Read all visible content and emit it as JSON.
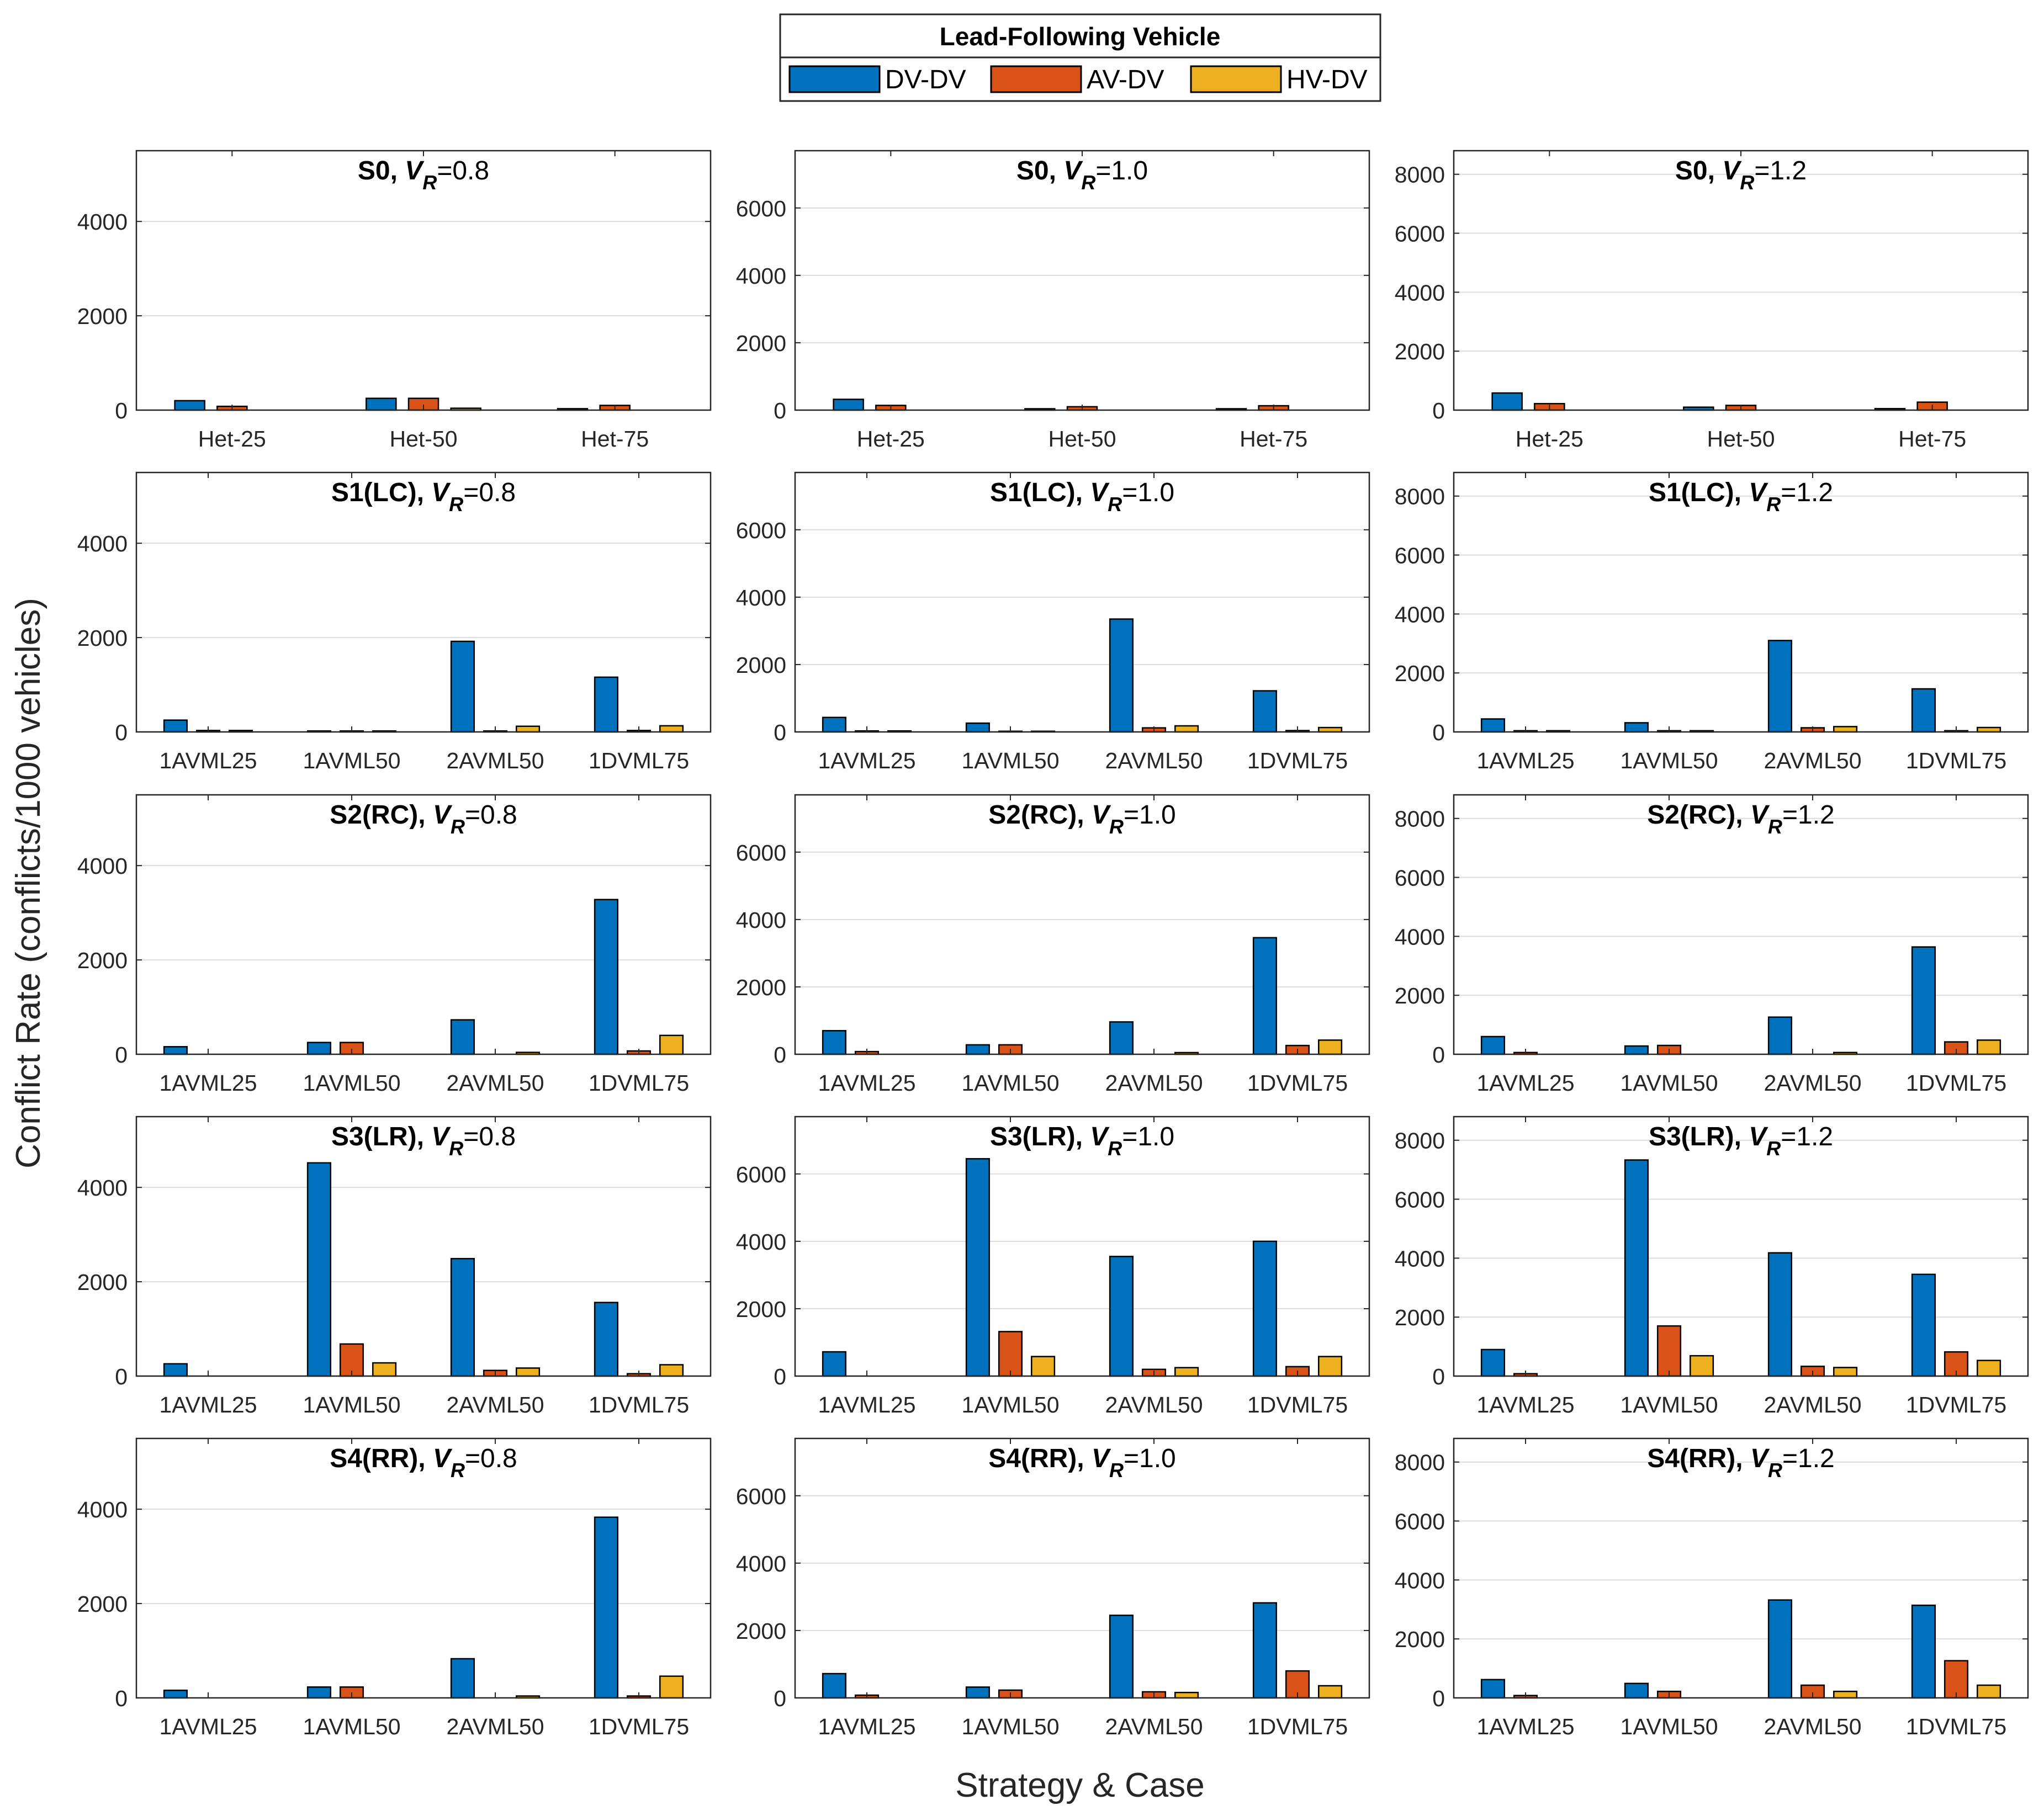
{
  "chart_data": {
    "type": "bar",
    "legend": {
      "title": "Lead-Following Vehicle",
      "placement": "top-center",
      "entries": [
        {
          "name": "DV-DV",
          "color": "#0072BD"
        },
        {
          "name": "AV-DV",
          "color": "#D95319"
        },
        {
          "name": "HV-DV",
          "color": "#EDB120"
        }
      ]
    },
    "xlabel": "Strategy & Case",
    "ylabel": "Conflict Rate (conflicts/1000 vehicles)",
    "columns": [
      {
        "vr": "0.8",
        "ylim": [
          0,
          5500
        ],
        "yticks": [
          0,
          2000,
          4000
        ]
      },
      {
        "vr": "1.0",
        "ylim": [
          0,
          7700
        ],
        "yticks": [
          0,
          2000,
          4000,
          6000
        ]
      },
      {
        "vr": "1.2",
        "ylim": [
          0,
          8800
        ],
        "yticks": [
          0,
          2000,
          4000,
          6000,
          8000
        ]
      }
    ],
    "rows": [
      {
        "strategy": "S0",
        "categories": [
          "Het-25",
          "Het-50",
          "Het-75"
        ],
        "panels": [
          {
            "series": [
              [
                200,
                250,
                30
              ],
              [
                80,
                250,
                100
              ],
              [
                0,
                40,
                0
              ]
            ]
          },
          {
            "series": [
              [
                320,
                40,
                40
              ],
              [
                140,
                100,
                130
              ],
              [
                0,
                0,
                0
              ]
            ]
          },
          {
            "series": [
              [
                580,
                100,
                50
              ],
              [
                220,
                160,
                270
              ],
              [
                0,
                0,
                0
              ]
            ]
          }
        ]
      },
      {
        "strategy": "S1(LC)",
        "categories": [
          "1AVML25",
          "1AVML50",
          "2AVML50",
          "1DVML75"
        ],
        "panels": [
          {
            "series": [
              [
                250,
                20,
                1920,
                1160
              ],
              [
                30,
                20,
                20,
                30
              ],
              [
                30,
                20,
                120,
                130
              ]
            ]
          },
          {
            "series": [
              [
                430,
                260,
                3350,
                1220
              ],
              [
                30,
                20,
                120,
                40
              ],
              [
                30,
                20,
                180,
                130
              ]
            ]
          },
          {
            "series": [
              [
                440,
                310,
                3100,
                1460
              ],
              [
                40,
                40,
                140,
                40
              ],
              [
                40,
                40,
                180,
                150
              ]
            ]
          }
        ]
      },
      {
        "strategy": "S2(RC)",
        "categories": [
          "1AVML25",
          "1AVML50",
          "2AVML50",
          "1DVML75"
        ],
        "panels": [
          {
            "series": [
              [
                160,
                250,
                730,
                3280
              ],
              [
                0,
                250,
                0,
                70
              ],
              [
                0,
                0,
                40,
                400
              ]
            ]
          },
          {
            "series": [
              [
                700,
                280,
                960,
                3460
              ],
              [
                80,
                280,
                0,
                260
              ],
              [
                0,
                0,
                50,
                420
              ]
            ]
          },
          {
            "series": [
              [
                600,
                280,
                1260,
                3640
              ],
              [
                60,
                300,
                0,
                420
              ],
              [
                0,
                0,
                60,
                480
              ]
            ]
          }
        ]
      },
      {
        "strategy": "S3(LR)",
        "categories": [
          "1AVML25",
          "1AVML50",
          "2AVML50",
          "1DVML75"
        ],
        "panels": [
          {
            "series": [
              [
                260,
                4520,
                2490,
                1560
              ],
              [
                0,
                680,
                120,
                50
              ],
              [
                0,
                280,
                170,
                240
              ]
            ]
          },
          {
            "series": [
              [
                720,
                6450,
                3550,
                4000
              ],
              [
                0,
                1320,
                200,
                280
              ],
              [
                0,
                580,
                250,
                580
              ]
            ]
          },
          {
            "series": [
              [
                900,
                7330,
                4180,
                3450
              ],
              [
                80,
                1700,
                330,
                820
              ],
              [
                0,
                690,
                290,
                530
              ]
            ]
          }
        ]
      },
      {
        "strategy": "S4(RR)",
        "categories": [
          "1AVML25",
          "1AVML50",
          "2AVML50",
          "1DVML75"
        ],
        "panels": [
          {
            "series": [
              [
                160,
                230,
                830,
                3830
              ],
              [
                0,
                230,
                0,
                40
              ],
              [
                0,
                0,
                40,
                460
              ]
            ]
          },
          {
            "series": [
              [
                720,
                320,
                2450,
                2820
              ],
              [
                80,
                230,
                180,
                800
              ],
              [
                0,
                0,
                160,
                360
              ]
            ]
          },
          {
            "series": [
              [
                620,
                490,
                3320,
                3140
              ],
              [
                80,
                220,
                430,
                1260
              ],
              [
                0,
                0,
                220,
                430
              ]
            ]
          }
        ]
      }
    ]
  }
}
